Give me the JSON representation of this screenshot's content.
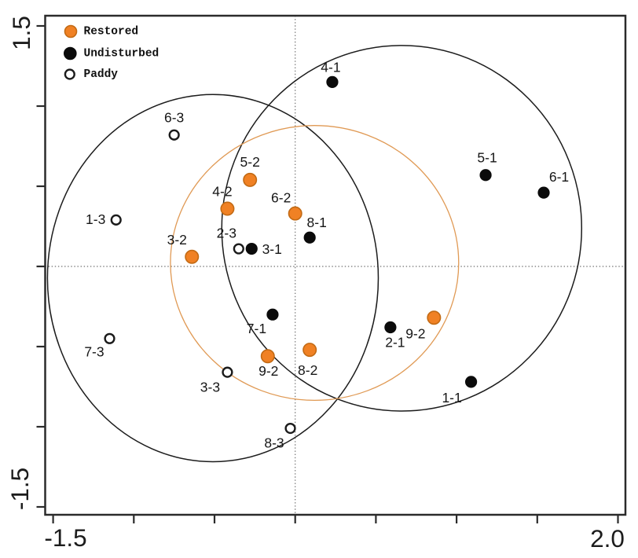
{
  "figure_type": "scatter-ordination-plot",
  "legend": {
    "items": [
      {
        "id": "restored",
        "label": "Restored",
        "marker": "filled-circle-icon",
        "color": "#F08124",
        "edge": "#C26A14"
      },
      {
        "id": "undisturbed",
        "label": "Undisturbed",
        "marker": "filled-circle-icon",
        "color": "#0B0B0B",
        "edge": "#0B0B0B"
      },
      {
        "id": "paddy",
        "label": "Paddy",
        "marker": "open-circle-icon",
        "color": "#FFFFFF",
        "edge": "#1B1B1B"
      }
    ]
  },
  "axes": {
    "x": {
      "min": -1.55,
      "max": 2.05,
      "ticks": [
        -1.5,
        -1.0,
        -0.5,
        0.0,
        0.5,
        1.0,
        1.5,
        2.0
      ],
      "first_tick_label": "-1.5",
      "last_tick_label": "2.0"
    },
    "y": {
      "min": -1.55,
      "max": 1.57,
      "ticks": [
        -1.5,
        -1.0,
        -0.5,
        0.0,
        0.5,
        1.0,
        1.5
      ],
      "first_tick_label": "-1.5",
      "last_tick_label": "1.5"
    },
    "zero_lines": {
      "style": "dotted",
      "color": "#6e6e6e"
    }
  },
  "chart_data": {
    "type": "scatter",
    "title": "",
    "xlabel": "",
    "ylabel": "",
    "xlim": [
      -1.55,
      2.05
    ],
    "ylim": [
      -1.55,
      1.57
    ],
    "grid": "zero-lines-dotted-only",
    "legend_position": "upper-left-inside",
    "series": [
      {
        "name": "Restored",
        "group": "restored",
        "points": [
          {
            "label": "5-2",
            "x": -0.28,
            "y": 0.54,
            "label_dx": 0,
            "label_dy": -23
          },
          {
            "label": "4-2",
            "x": -0.42,
            "y": 0.36,
            "label_dx": -6.5,
            "label_dy": -22
          },
          {
            "label": "6-2",
            "x": 0.0,
            "y": 0.33,
            "label_dx": -18,
            "label_dy": -20
          },
          {
            "label": "3-2",
            "x": -0.64,
            "y": 0.06,
            "label_dx": -19,
            "label_dy": -22
          },
          {
            "label": "9-2",
            "x": 0.86,
            "y": -0.32,
            "label_dx": -23.5,
            "label_dy": 20
          },
          {
            "label": "9-2",
            "x": -0.17,
            "y": -0.56,
            "label_dx": 1,
            "label_dy": 19
          },
          {
            "label": "8-2",
            "x": 0.09,
            "y": -0.52,
            "label_dx": -2.5,
            "label_dy": 26
          }
        ]
      },
      {
        "name": "Undisturbed",
        "group": "undisturbed",
        "points": [
          {
            "label": "4-1",
            "x": 0.23,
            "y": 1.15,
            "label_dx": -2,
            "label_dy": -19
          },
          {
            "label": "5-1",
            "x": 1.18,
            "y": 0.57,
            "label_dx": 2,
            "label_dy": -22
          },
          {
            "label": "6-1",
            "x": 1.54,
            "y": 0.46,
            "label_dx": 19.5,
            "label_dy": -20
          },
          {
            "label": "8-1",
            "x": 0.09,
            "y": 0.18,
            "label_dx": 9,
            "label_dy": -19.5
          },
          {
            "label": "3-1",
            "x": -0.27,
            "y": 0.11,
            "label_dx": 26,
            "label_dy": 0.5
          },
          {
            "label": "7-1",
            "x": -0.14,
            "y": -0.3,
            "label_dx": -20.5,
            "label_dy": 18
          },
          {
            "label": "2-1",
            "x": 0.59,
            "y": -0.38,
            "label_dx": 6,
            "label_dy": 19
          },
          {
            "label": "1-1",
            "x": 1.09,
            "y": -0.72,
            "label_dx": -24.5,
            "label_dy": 20
          }
        ]
      },
      {
        "name": "Paddy",
        "group": "paddy",
        "points": [
          {
            "label": "6-3",
            "x": -0.75,
            "y": 0.82,
            "label_dx": 0,
            "label_dy": -22
          },
          {
            "label": "1-3",
            "x": -1.11,
            "y": 0.29,
            "label_dx": -26,
            "label_dy": -1
          },
          {
            "label": "2-3",
            "x": -0.35,
            "y": 0.11,
            "label_dx": -15.5,
            "label_dy": -20
          },
          {
            "label": "7-3",
            "x": -1.15,
            "y": -0.45,
            "label_dx": -19.5,
            "label_dy": 16.5
          },
          {
            "label": "3-3",
            "x": -0.42,
            "y": -0.66,
            "label_dx": -22,
            "label_dy": 19
          },
          {
            "label": "8-3",
            "x": -0.03,
            "y": -1.01,
            "label_dx": -20.5,
            "label_dy": 18.5
          }
        ]
      }
    ],
    "group_ellipses": [
      {
        "group": "paddy-left",
        "cx": -0.51,
        "cy": -0.073,
        "rx": 1.025,
        "ry": 1.145,
        "color": "#1c1c1c",
        "width": 1.5
      },
      {
        "group": "undisturbed-right",
        "cx": 0.66,
        "cy": 0.238,
        "rx": 1.115,
        "ry": 1.14,
        "color": "#1c1c1c",
        "width": 1.5
      },
      {
        "group": "restored-middle",
        "cx": 0.12,
        "cy": 0.022,
        "rx": 0.893,
        "ry": 0.857,
        "color": "#E09A55",
        "width": 1.3
      }
    ]
  },
  "colors": {
    "background": "#ffffff",
    "frame": "#2b2b2b",
    "restored_fill": "#F08124",
    "restored_edge": "#C26A14",
    "undisturbed_fill": "#0B0B0B",
    "paddy_edge": "#1B1B1B",
    "zero_line": "#6e6e6e",
    "label_text": "#161616"
  }
}
